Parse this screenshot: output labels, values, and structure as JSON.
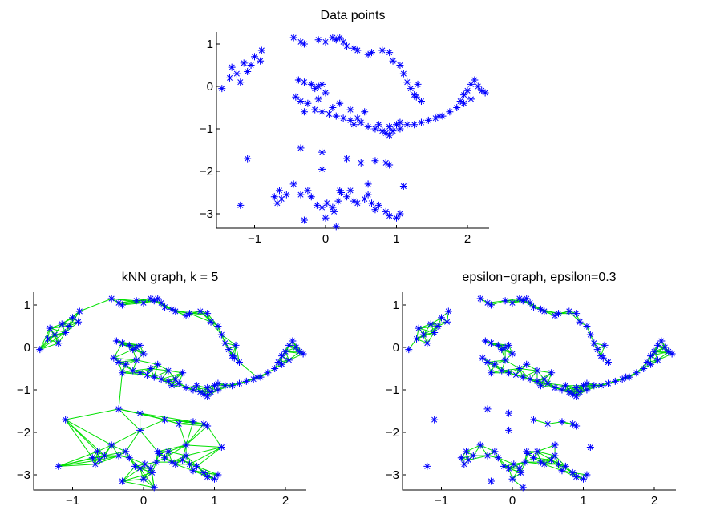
{
  "figure": {
    "chart_data": [
      {
        "type": "scatter",
        "title": "Data points",
        "xlim": [
          -1.5,
          2.3
        ],
        "ylim": [
          -3.3,
          1.3
        ],
        "xticks": [
          "-1",
          "0",
          "1",
          "2"
        ],
        "yticks": [
          "1",
          "0",
          "-1",
          "-2",
          "-3"
        ],
        "marker": "*",
        "point_color": "#0000ff",
        "edge_color": "",
        "edges": "none"
      },
      {
        "type": "scatter",
        "title": "kNN graph, k = 5",
        "xlim": [
          -1.5,
          2.3
        ],
        "ylim": [
          -3.3,
          1.3
        ],
        "xticks": [
          "-1",
          "0",
          "1",
          "2"
        ],
        "yticks": [
          "1",
          "0",
          "-1",
          "-2",
          "-3"
        ],
        "marker": "*",
        "point_color": "#0000ff",
        "edge_color": "#00e000",
        "edges": "knn",
        "k": 5
      },
      {
        "type": "scatter",
        "title": "epsilon−graph, epsilon=0.3",
        "xlim": [
          -1.5,
          2.3
        ],
        "ylim": [
          -3.3,
          1.3
        ],
        "xticks": [
          "-1",
          "0",
          "1",
          "2"
        ],
        "yticks": [
          "1",
          "0",
          "-1",
          "-2",
          "-3"
        ],
        "marker": "*",
        "point_color": "#0000ff",
        "edge_color": "#00e000",
        "edges": "epsilon",
        "epsilon": 0.3
      }
    ],
    "points": {
      "x": [
        -1.46,
        -1.35,
        -1.32,
        -1.25,
        -1.2,
        -1.15,
        -1.1,
        -1.05,
        -1.0,
        -0.92,
        -0.9,
        -0.45,
        -0.35,
        -0.3,
        -0.1,
        0.0,
        0.1,
        0.15,
        0.2,
        0.25,
        0.3,
        0.4,
        0.45,
        0.6,
        0.65,
        0.8,
        0.9,
        0.95,
        1.05,
        1.1,
        1.15,
        1.2,
        1.25,
        1.28,
        1.3,
        1.35,
        -0.38,
        -0.3,
        -0.2,
        -0.15,
        -0.1,
        -0.05,
        0.0,
        -0.42,
        -0.35,
        -0.25,
        -0.15,
        -0.05,
        0.05,
        0.15,
        0.25,
        0.35,
        0.4,
        0.5,
        0.6,
        0.7,
        0.8,
        0.85,
        0.9,
        0.95,
        1.0,
        1.05,
        1.15,
        1.25,
        1.35,
        1.45,
        1.55,
        1.65,
        1.75,
        1.85,
        1.9,
        1.95,
        2.0,
        2.05,
        2.1,
        2.15,
        2.2,
        2.25,
        2.05,
        1.95,
        1.6,
        0.35,
        0.45,
        0.55,
        0.75,
        0.9,
        1.05,
        0.1,
        0.2,
        -0.3,
        -0.1,
        -0.35,
        -1.1,
        -1.2,
        -0.45,
        -0.72,
        -0.68,
        -0.62,
        -0.55,
        -0.65,
        -0.35,
        -0.25,
        -0.2,
        -0.12,
        -0.05,
        0.02,
        0.1,
        0.12,
        0.18,
        0.22,
        0.3,
        0.35,
        0.4,
        0.45,
        0.55,
        0.6,
        0.65,
        0.7,
        0.75,
        0.85,
        0.9,
        1.0,
        1.05,
        0.2,
        0.6,
        -0.3,
        0.0,
        0.15,
        -0.05,
        0.3,
        0.5,
        0.7,
        0.85,
        0.9,
        1.1,
        -0.05
      ],
      "y": [
        -0.05,
        0.2,
        0.45,
        0.3,
        0.1,
        0.55,
        0.35,
        0.5,
        0.7,
        0.6,
        0.85,
        1.15,
        1.05,
        1.0,
        1.1,
        1.05,
        1.15,
        1.1,
        1.15,
        1.05,
        0.95,
        0.9,
        0.85,
        0.75,
        0.8,
        0.85,
        0.8,
        0.6,
        0.5,
        0.3,
        0.1,
        -0.05,
        -0.2,
        -0.25,
        0.05,
        -0.35,
        0.15,
        0.1,
        0.05,
        -0.05,
        0.0,
        0.05,
        -0.15,
        -0.25,
        -0.35,
        -0.4,
        -0.55,
        -0.6,
        -0.65,
        -0.7,
        -0.75,
        -0.8,
        -0.9,
        -0.85,
        -0.95,
        -1.0,
        -1.05,
        -1.1,
        -1.15,
        -1.05,
        -0.9,
        -0.85,
        -0.9,
        -0.9,
        -0.85,
        -0.8,
        -0.75,
        -0.7,
        -0.6,
        -0.5,
        -0.35,
        -0.2,
        -0.1,
        0.05,
        0.15,
        0.0,
        -0.1,
        -0.15,
        -0.3,
        -0.4,
        -0.7,
        -0.55,
        -0.75,
        -0.6,
        -0.9,
        -0.95,
        -1.0,
        -0.5,
        -0.4,
        -0.6,
        -0.3,
        -1.45,
        -1.7,
        -2.8,
        -2.3,
        -2.6,
        -2.75,
        -2.65,
        -2.55,
        -2.45,
        -2.55,
        -2.45,
        -2.6,
        -2.8,
        -2.85,
        -2.75,
        -2.85,
        -2.95,
        -2.7,
        -2.5,
        -2.6,
        -2.45,
        -2.7,
        -2.75,
        -2.65,
        -2.55,
        -2.75,
        -2.9,
        -2.8,
        -2.95,
        -3.05,
        -3.1,
        -3.0,
        -2.45,
        -2.3,
        -3.15,
        -3.1,
        -3.3,
        -1.55,
        -1.7,
        -1.8,
        -1.75,
        -1.8,
        -1.85,
        -2.35,
        -1.95
      ]
    }
  }
}
